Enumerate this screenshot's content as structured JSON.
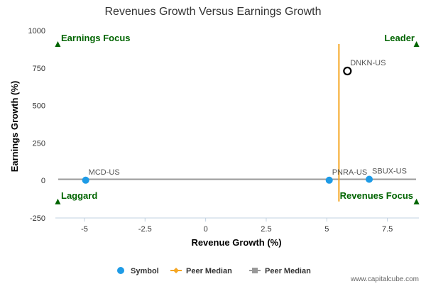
{
  "chart_data": {
    "type": "scatter",
    "title": "Revenues Growth Versus Earnings Growth",
    "xlabel": "Revenue Growth (%)",
    "ylabel": "Earnings Growth (%)",
    "xlim": [
      -6.2,
      8.8
    ],
    "ylim": [
      -250,
      1000
    ],
    "x_ticks": [
      -5,
      -2.5,
      0,
      2.5,
      5,
      7.5
    ],
    "x_tick_labels": [
      "-5",
      "-2.5",
      "0",
      "2.5",
      "5",
      "7.5"
    ],
    "y_ticks": [
      -250,
      0,
      250,
      500,
      750,
      1000
    ],
    "y_tick_labels": [
      "-250",
      "0",
      "250",
      "500",
      "750",
      "1000"
    ],
    "grid": false,
    "series": [
      {
        "name": "Symbol",
        "color": "#1e9be6",
        "points": [
          {
            "label": "MCD-US",
            "x": -4.95,
            "y": 2
          },
          {
            "label": "PNRA-US",
            "x": 5.1,
            "y": 2
          },
          {
            "label": "SBUX-US",
            "x": 6.75,
            "y": 8
          }
        ]
      },
      {
        "name": "",
        "color": "#000000",
        "marker": "hollow-circle",
        "points": [
          {
            "label": "DNKN-US",
            "x": 5.85,
            "y": 730
          }
        ]
      }
    ],
    "peer_median_vertical": {
      "name": "Peer Median",
      "color": "#f5a623",
      "x": 5.5,
      "y_range": [
        -140,
        910
      ]
    },
    "peer_median_horizontal": {
      "name": "Peer Median",
      "color": "#999999",
      "y": 8,
      "x_range": [
        -6.2,
        8.8
      ]
    },
    "quadrants": [
      {
        "label": "Earnings Focus",
        "corner": "top-left",
        "marker_x": -6.1,
        "marker_y": 910
      },
      {
        "label": "Leader",
        "corner": "top-right",
        "marker_x": 8.7,
        "marker_y": 910
      },
      {
        "label": "Laggard",
        "corner": "bottom-left",
        "marker_x": -6.1,
        "marker_y": -140
      },
      {
        "label": "Revenues Focus",
        "corner": "bottom-right",
        "marker_x": 8.7,
        "marker_y": -140
      }
    ],
    "quadrant_color": "#006400",
    "legend": {
      "placement": "bottom-center",
      "items": [
        {
          "label": "Symbol",
          "kind": "dot",
          "color": "#1e9be6"
        },
        {
          "label": "Peer Median",
          "kind": "line-diamond",
          "color": "#f5a623"
        },
        {
          "label": "Peer Median",
          "kind": "line-square",
          "color": "#999999"
        }
      ]
    }
  },
  "credit": "www.capitalcube.com"
}
